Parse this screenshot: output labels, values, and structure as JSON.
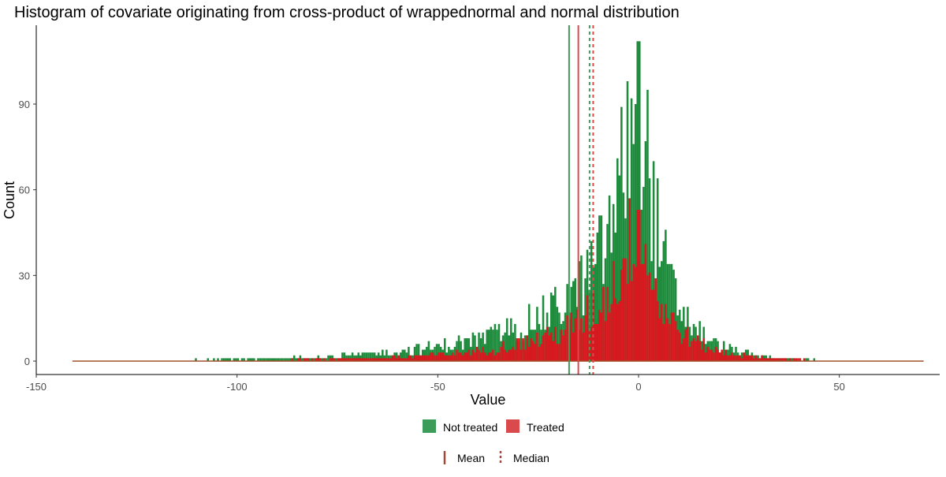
{
  "chart_data": {
    "type": "bar",
    "title": "Histogram of covariate originating from cross-product of wrappednormal and normal distribution",
    "xlabel": "Value",
    "ylabel": "Count",
    "xlim": [
      -150,
      75
    ],
    "ylim": [
      0,
      113
    ],
    "xticks": [
      -150,
      -100,
      -50,
      0,
      50
    ],
    "yticks": [
      0,
      30,
      60,
      90
    ],
    "xtick_labels": [
      "-150",
      "-100",
      "-50",
      "0",
      "50"
    ],
    "ytick_labels": [
      "0",
      "30",
      "60",
      "90"
    ],
    "grid": false,
    "legend_position": "bottom",
    "data_range": [
      -141,
      71
    ],
    "bin_width": 0.5,
    "series": [
      {
        "name": "Not treated",
        "color": "#1e8c3c",
        "peak_x": -0.3,
        "peak_count": 112,
        "mean": -17.3,
        "median": -12.2
      },
      {
        "name": "Treated",
        "color": "#d6191e",
        "peak_x": -0.3,
        "peak_count": 53,
        "mean": -15.0,
        "median": -11.3
      }
    ],
    "legend": {
      "fill_entries": [
        {
          "label": "Not treated",
          "color": "#3c9c5a"
        },
        {
          "label": "Treated",
          "color": "#da4a4c"
        }
      ],
      "line_entries": [
        {
          "label": "Mean",
          "style": "solid",
          "color": "#9e4a3a"
        },
        {
          "label": "Median",
          "style": "dotted",
          "color": "#9e4a3a"
        }
      ]
    }
  }
}
